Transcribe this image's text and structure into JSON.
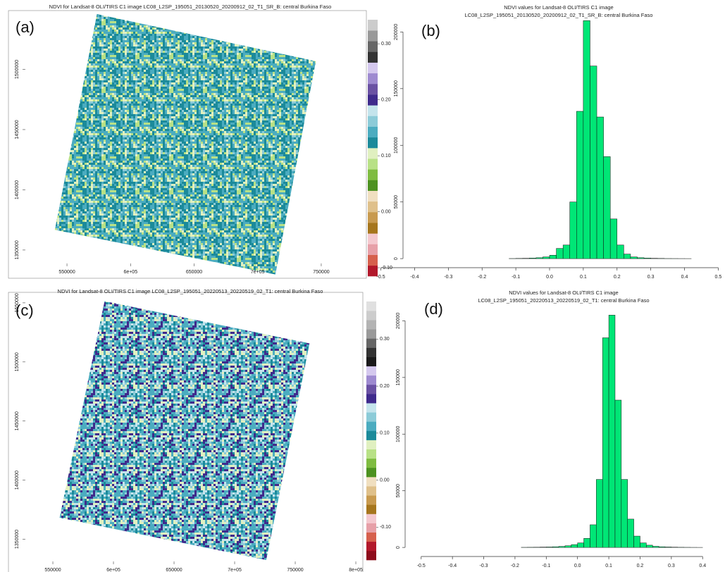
{
  "chart_data": [
    {
      "type": "raster",
      "panel_label": "(a)",
      "title": "NDVI for Landsat-8 OLI/TIRS C1 image LC08_L2SP_195051_20130520_20200912_02_T1_SR_B: central Burkina Faso",
      "xlim": [
        520600,
        785500
      ],
      "xticks": [
        550000,
        {
          "value": 600000,
          "label": "6e+05"
        },
        650000,
        {
          "value": 700000,
          "label": "7e+05"
        },
        750000
      ],
      "ylim": [
        1340000,
        1545900
      ],
      "yticks": [
        1350000,
        1400000,
        1450000,
        1500000
      ],
      "colorbar": {
        "lim": [
          -0.115,
          0.343
        ],
        "ticks": [
          {
            "value": -0.1,
            "label": "-0.10"
          },
          {
            "value": 0,
            "label": "0.00"
          },
          {
            "value": 0.1,
            "label": "0.10"
          },
          {
            "value": 0.2,
            "label": "0.20"
          },
          {
            "value": 0.3,
            "label": "0.30"
          }
        ],
        "colors": [
          "#b2182b",
          "#d6604d",
          "#e7a0a8",
          "#f4c9cf",
          "#a6761d",
          "#c89a4f",
          "#dfc08a",
          "#f0dfc0",
          "#4d9221",
          "#7fbc41",
          "#b8e186",
          "#e0f0c0",
          "#1b8a9a",
          "#4bacc0",
          "#8ccbd8",
          "#c4e4ec",
          "#3f2a8c",
          "#6a51a3",
          "#9e8ad0",
          "#d4c8ee",
          "#333333",
          "#666666",
          "#999999",
          "#cccccc"
        ]
      }
    },
    {
      "type": "histogram",
      "panel_label": "(b)",
      "title": [
        "NDVI values for Landsat-8 OLI/TIRS C1 image",
        "LC08_L2SP_195051_20130520_20200912_02_T1_SR_B: central Burkina Faso"
      ],
      "bins": [
        -0.12,
        -0.1,
        -0.08,
        -0.06,
        -0.04,
        -0.02,
        0.0,
        0.02,
        0.04,
        0.06,
        0.08,
        0.1,
        0.12,
        0.14,
        0.16,
        0.18,
        0.2,
        0.22,
        0.24,
        0.26,
        0.28,
        0.3,
        0.32,
        0.34,
        0.36,
        0.38,
        0.4,
        0.42
      ],
      "counts": [
        100,
        200,
        300,
        500,
        800,
        1500,
        3000,
        9000,
        12000,
        50000,
        130000,
        210000,
        170000,
        125000,
        90000,
        35000,
        12000,
        4000,
        1500,
        800,
        500,
        300,
        200,
        100,
        80,
        50,
        30
      ],
      "color": "#00e676",
      "xlim": [
        -0.52,
        0.52
      ],
      "xticks": [
        -0.5,
        -0.4,
        -0.3,
        -0.2,
        -0.1,
        {
          "value": 0,
          "label": "0.0"
        },
        0.1,
        0.2,
        0.3,
        0.4,
        0.5
      ],
      "ylim": [
        -8000,
        222000
      ],
      "yticks": [
        0,
        50000,
        100000,
        150000,
        200000
      ]
    },
    {
      "type": "raster",
      "panel_label": "(c)",
      "title": "NDVI for Landsat-8 OLI/TIRS C1 image LC08_L2SP_195051_20220513_20220519_02_T1: central Burkina Faso",
      "xlim": [
        530800,
        805800
      ],
      "xticks": [
        550000,
        {
          "value": 600000,
          "label": "6e+05"
        },
        650000,
        {
          "value": 700000,
          "label": "7e+05"
        },
        750000,
        {
          "value": 800000,
          "label": "8e+05"
        }
      ],
      "ylim": [
        1332400,
        1555900
      ],
      "yticks": [
        1350000,
        1400000,
        1450000,
        1500000,
        1550000
      ],
      "colorbar": {
        "lim": [
          -0.17,
          0.38
        ],
        "ticks": [
          {
            "value": -0.1,
            "label": "-0.10"
          },
          {
            "value": 0,
            "label": "0.00"
          },
          {
            "value": 0.1,
            "label": "0.10"
          },
          {
            "value": 0.2,
            "label": "0.20"
          },
          {
            "value": 0.3,
            "label": "0.30"
          }
        ],
        "colors": [
          "#8e0c1c",
          "#b2182b",
          "#d6604d",
          "#e7a0a8",
          "#f4c9cf",
          "#a6761d",
          "#c89a4f",
          "#dfc08a",
          "#f0dfc0",
          "#4d9221",
          "#7fbc41",
          "#b8e186",
          "#e0f0c0",
          "#1b8a9a",
          "#4bacc0",
          "#8ccbd8",
          "#c4e4ec",
          "#3f2a8c",
          "#6a51a3",
          "#9e8ad0",
          "#d4c8ee",
          "#1a1a1a",
          "#333333",
          "#666666",
          "#999999",
          "#b3b3b3",
          "#cccccc",
          "#e0e0e0"
        ]
      }
    },
    {
      "type": "histogram",
      "panel_label": "(d)",
      "title": [
        "NDVI values for Landsat-8 OLI/TIRS C1 image",
        "LC08_L2SP_195051_20220513_20220519_02_T1: central Burkina Faso"
      ],
      "bins": [
        -0.18,
        -0.16,
        -0.14,
        -0.12,
        -0.1,
        -0.08,
        -0.06,
        -0.04,
        -0.02,
        0.0,
        0.02,
        0.04,
        0.06,
        0.08,
        0.1,
        0.12,
        0.14,
        0.16,
        0.18,
        0.2,
        0.22,
        0.24,
        0.26,
        0.28,
        0.3,
        0.32,
        0.34,
        0.36,
        0.38,
        0.4
      ],
      "counts": [
        100,
        150,
        200,
        300,
        400,
        600,
        900,
        1500,
        2500,
        4000,
        8000,
        20000,
        60000,
        185000,
        205000,
        130000,
        60000,
        25000,
        10000,
        4000,
        2000,
        1000,
        600,
        400,
        250,
        150,
        100,
        60,
        30
      ],
      "color": "#00e676",
      "xlim": [
        -0.54,
        0.44
      ],
      "xticks": [
        -0.5,
        -0.4,
        -0.3,
        -0.2,
        -0.1,
        {
          "value": 0,
          "label": "0.0"
        },
        0.1,
        0.2,
        0.3,
        0.4
      ],
      "ylim": [
        -8000,
        222000
      ],
      "yticks": [
        0,
        50000,
        100000,
        150000,
        200000
      ]
    }
  ]
}
